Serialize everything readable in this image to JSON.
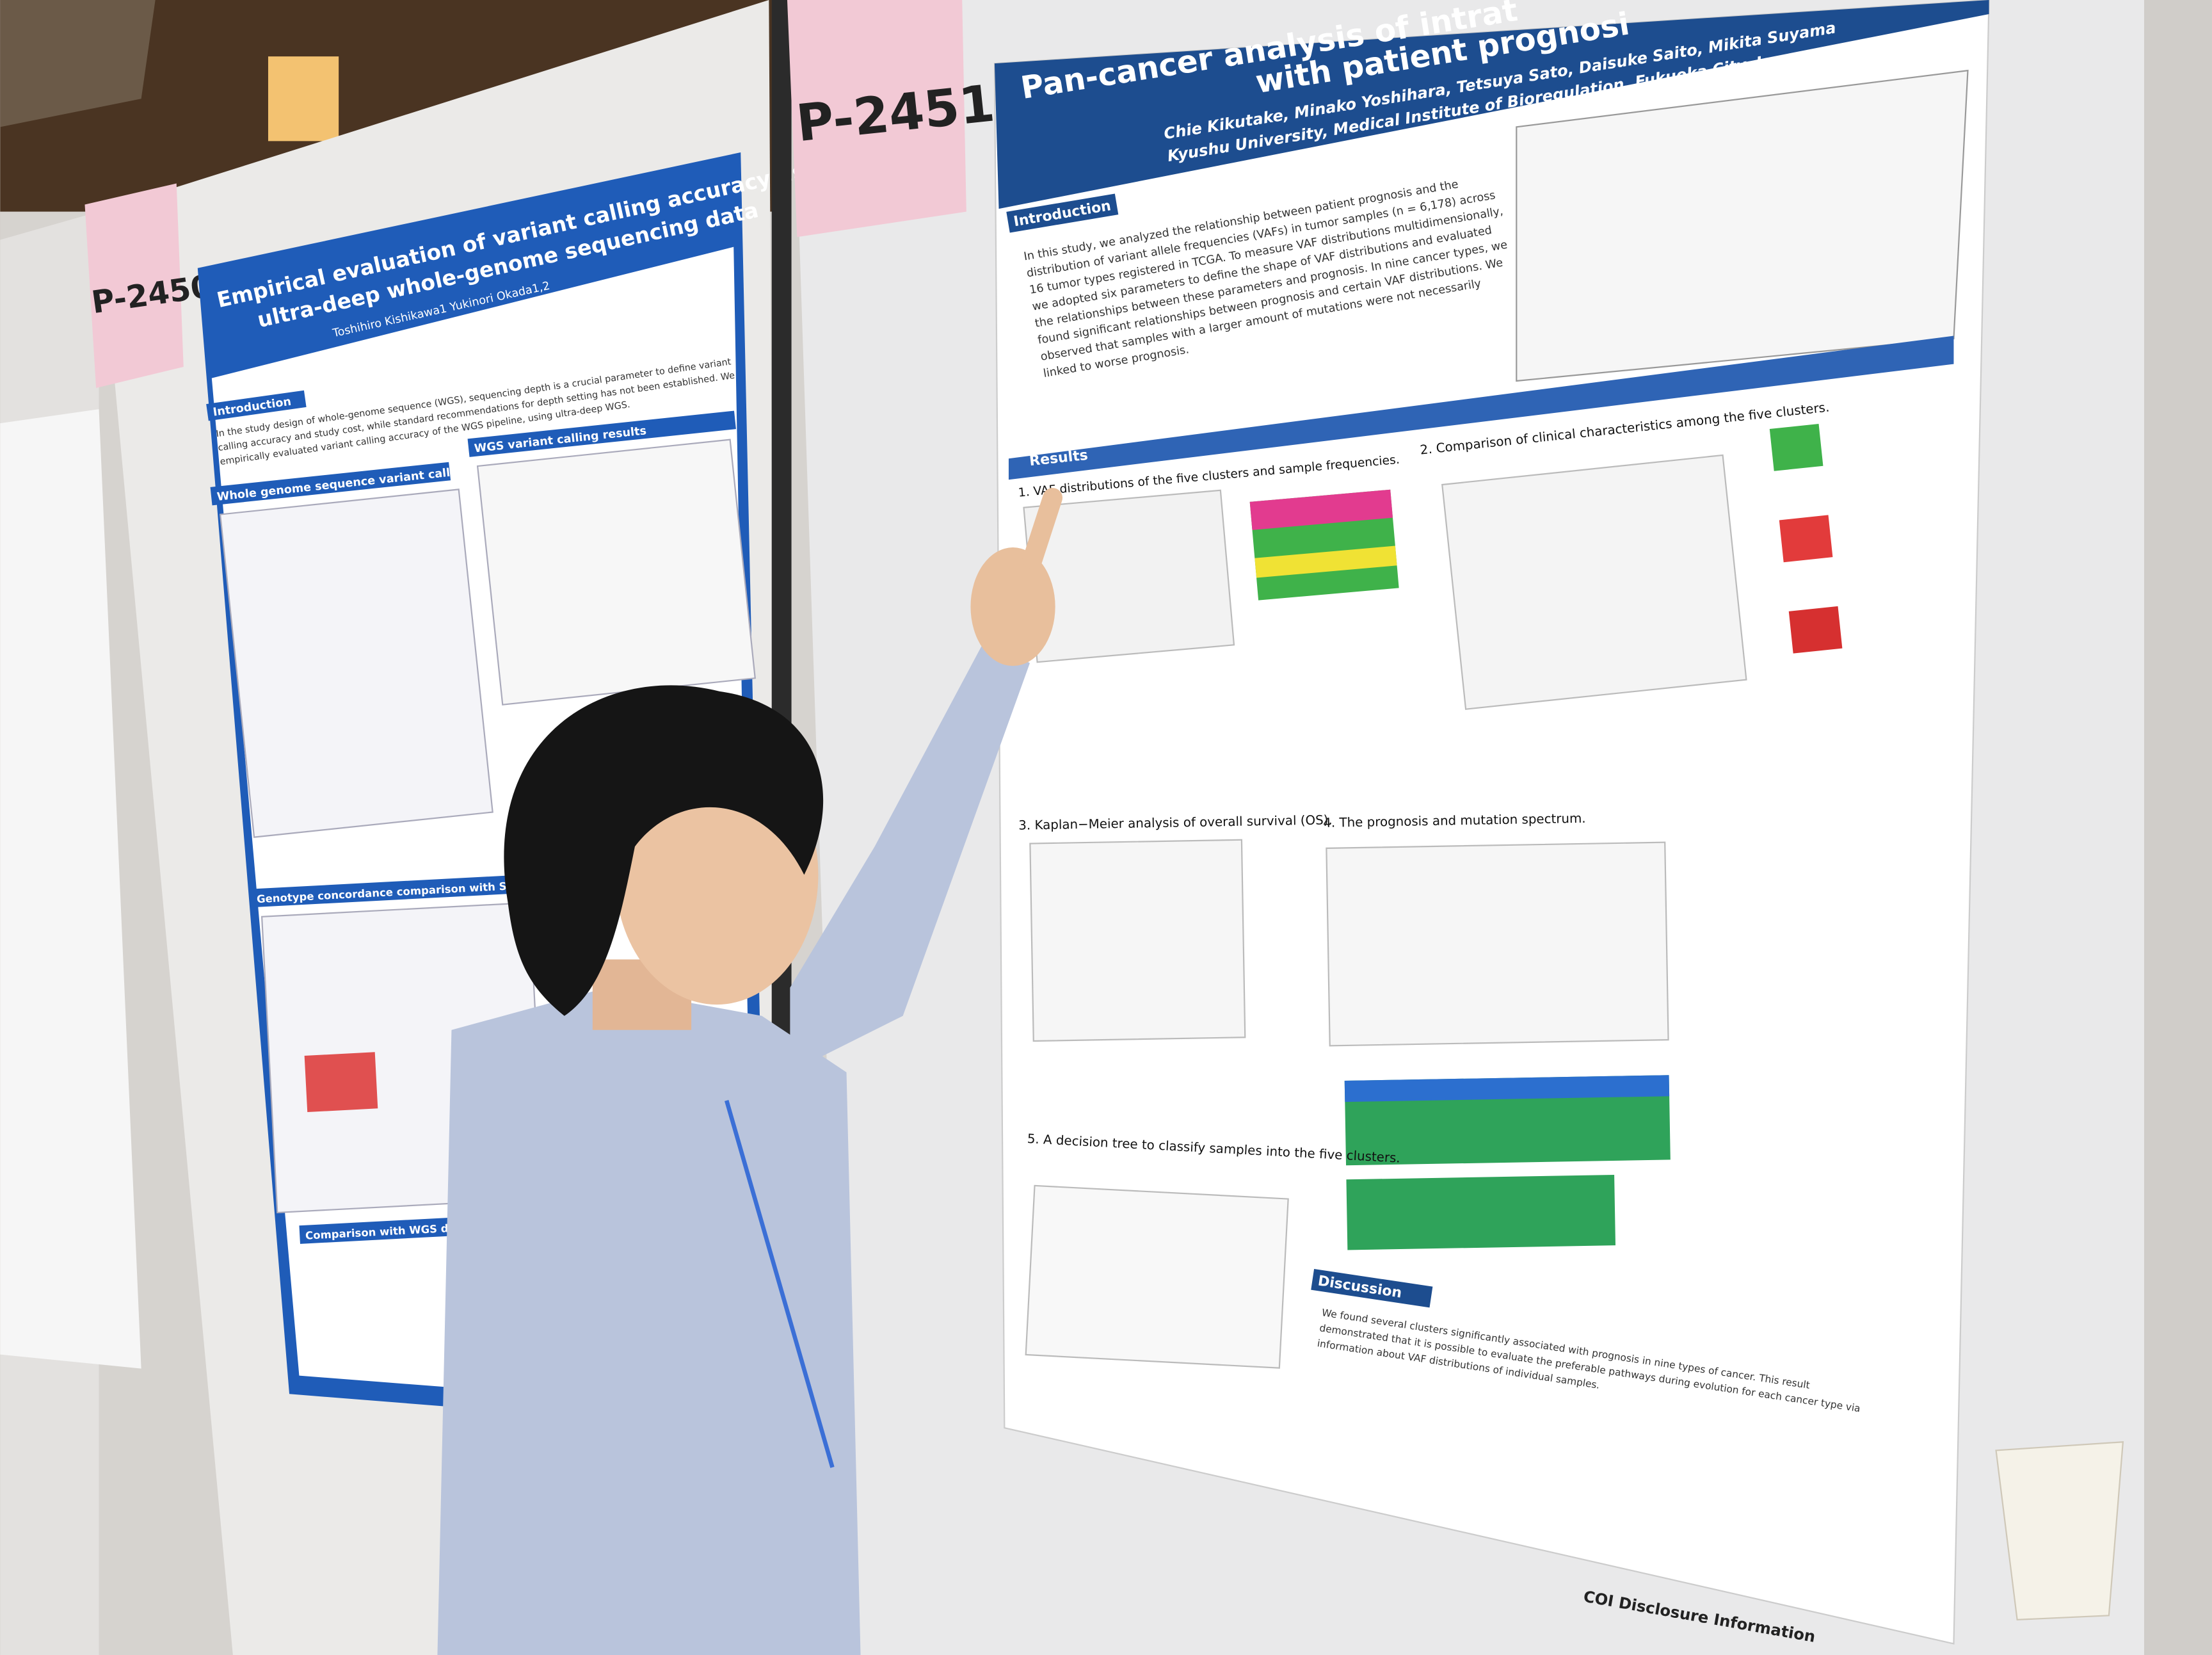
{
  "left_poster": {
    "number": "P-2450",
    "title_lines": [
      "Empirical evaluation of variant calling accuracy using",
      "ultra-deep whole-genome sequencing data"
    ],
    "authors": "Toshihiro Kishikawa1  Yukinori Okada1,2",
    "introduction_heading": "Introduction",
    "introduction_lines": [
      "In the study design of whole-genome sequence (WGS), sequencing depth is a crucial parameter to define variant",
      "calling accuracy and study cost, while standard recommendations for depth setting has not been established. We",
      "empirically evaluated variant calling accuracy of the WGS pipeline, using ultra-deep WGS."
    ],
    "sections": [
      "Whole genome sequence variant calling",
      "WGS variant calling results",
      "Genotype concordance comparison with SNP microarray",
      "Comparison with WGS data of all the"
    ]
  },
  "right_poster": {
    "number": "P-2451",
    "title_lines": [
      "Pan-cancer analysis of intrat",
      "with patient prognosi"
    ],
    "authors": "Chie Kikutake, Minako Yoshihara, Tetsuya Sato, Daisuke Saito, Mikita Suyama",
    "affiliation": "Kyushu University, Medical Institute of Bioregulation, Fukuoka City, Japan",
    "introduction_heading": "Introduction",
    "introduction_lines": [
      "In this study, we analyzed the relationship between patient prognosis and the",
      "distribution of variant allele frequencies (VAFs) in tumor samples (n = 6,178) across",
      "16 tumor types registered in TCGA. To measure VAF distributions multidimensionally,",
      "we adopted six parameters to define the shape of VAF distributions and evaluated",
      "the relationships between these parameters and prognosis. In nine cancer types, we",
      "found significant relationships between prognosis and certain VAF distributions. We",
      "observed that samples with a larger amount of mutations were not necessarily",
      "linked to worse prognosis."
    ],
    "results_heading": "Results",
    "result_sections": [
      "1. VAF distributions of the five clusters and sample frequencies.",
      "2. Comparison of clinical characteristics among the five clusters.",
      "3. Kaplan−Meier analysis of overall survival (OS).",
      "4. The prognosis and mutation spectrum.",
      "5. A decision tree to classify samples into the five clusters."
    ],
    "discussion_heading": "Discussion",
    "discussion_lines": [
      "We found several clusters significantly associated with prognosis in nine types of cancer. This result",
      "demonstrated that it is possible to evaluate the preferable pathways during evolution for each cancer type via",
      "information about VAF distributions of individual samples."
    ],
    "coi": "COI Disclosure Information"
  }
}
